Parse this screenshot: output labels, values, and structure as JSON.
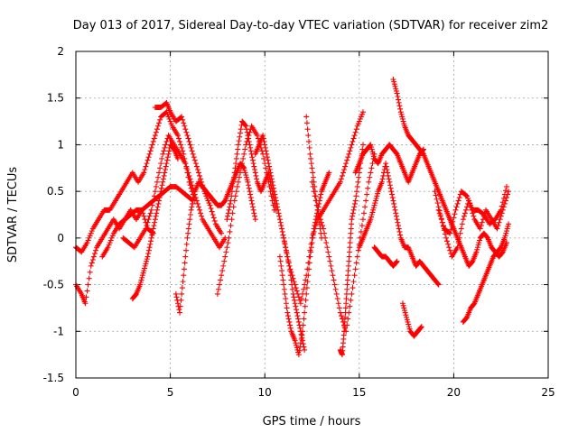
{
  "chart_data": {
    "type": "scatter",
    "title": "Day 013 of 2017, Sidereal Day-to-day VTEC variation (SDTVAR) for receiver zim2",
    "xlabel": "GPS time / hours",
    "ylabel": "SDTVAR / TECUs",
    "xlim": [
      0,
      25
    ],
    "ylim": [
      -1.5,
      2
    ],
    "xticks": [
      0,
      5,
      10,
      15,
      20,
      25
    ],
    "yticks": [
      -1.5,
      -1,
      -0.5,
      0,
      0.5,
      1,
      1.5,
      2
    ],
    "xtick_labels": [
      "0",
      "5",
      "10",
      "15",
      "20",
      "25"
    ],
    "ytick_labels": [
      "-1.5",
      "-1",
      "-0.5",
      "0",
      "0.5",
      "1",
      "1.5",
      "2"
    ],
    "grid": true,
    "marker": "+",
    "color": "#ff0000",
    "series": [
      {
        "name": "s1",
        "x": [
          0.0,
          0.3,
          0.6,
          0.9,
          1.2,
          1.5,
          1.8,
          2.1,
          2.4,
          2.7,
          3.0,
          3.3,
          3.6,
          3.9,
          4.2,
          4.5,
          4.8,
          5.1,
          5.4,
          5.7,
          6.0,
          6.3
        ],
        "y": [
          -0.1,
          -0.15,
          -0.05,
          0.1,
          0.2,
          0.3,
          0.3,
          0.4,
          0.5,
          0.6,
          0.7,
          0.6,
          0.7,
          0.9,
          1.1,
          1.3,
          1.35,
          1.2,
          1.1,
          0.9,
          0.6,
          0.4
        ]
      },
      {
        "name": "s2",
        "x": [
          4.2,
          4.5,
          4.8,
          5.0,
          5.3,
          5.6,
          5.9,
          6.2,
          6.5,
          6.8,
          7.1,
          7.4,
          7.7
        ],
        "y": [
          1.4,
          1.4,
          1.45,
          1.35,
          1.25,
          1.3,
          1.1,
          0.9,
          0.7,
          0.5,
          0.35,
          0.15,
          0.05
        ]
      },
      {
        "name": "s3",
        "x": [
          0.0,
          0.3,
          0.5,
          0.8,
          1.1,
          1.4,
          1.7,
          2.0,
          2.3,
          2.6,
          2.9,
          3.2,
          3.5,
          3.8,
          4.1
        ],
        "y": [
          -0.5,
          -0.6,
          -0.7,
          -0.3,
          -0.1,
          0.0,
          0.1,
          0.2,
          0.1,
          0.2,
          0.3,
          0.2,
          0.3,
          0.1,
          0.05
        ]
      },
      {
        "name": "s4",
        "x": [
          1.4,
          1.7,
          2.0,
          2.3,
          2.6,
          2.9,
          3.2,
          3.5,
          3.8,
          4.1,
          4.4,
          4.7,
          5.0,
          5.3,
          5.6,
          5.9,
          6.2
        ],
        "y": [
          -0.2,
          -0.1,
          0.05,
          0.15,
          0.2,
          0.25,
          0.3,
          0.3,
          0.35,
          0.4,
          0.45,
          0.5,
          0.55,
          0.55,
          0.5,
          0.45,
          0.4
        ]
      },
      {
        "name": "s5",
        "x": [
          2.5,
          2.8,
          3.1,
          3.4,
          3.7,
          4.0,
          4.3,
          4.6,
          4.9,
          5.2,
          5.5,
          5.8,
          6.1,
          6.4,
          6.7,
          7.0,
          7.3,
          7.6,
          7.9
        ],
        "y": [
          0.0,
          -0.05,
          -0.1,
          0.0,
          0.1,
          0.3,
          0.6,
          0.9,
          1.1,
          1.0,
          0.9,
          0.8,
          0.6,
          0.4,
          0.2,
          0.1,
          0.0,
          -0.1,
          0.0
        ]
      },
      {
        "name": "s6",
        "x": [
          3.0,
          3.2,
          3.4,
          3.6,
          3.8,
          4.0,
          4.2,
          4.4,
          4.6,
          4.8,
          5.0,
          5.2,
          5.4
        ],
        "y": [
          -0.65,
          -0.6,
          -0.5,
          -0.35,
          -0.2,
          0.0,
          0.2,
          0.4,
          0.6,
          0.8,
          1.0,
          0.95,
          0.85
        ]
      },
      {
        "name": "s7",
        "x": [
          5.3,
          5.5,
          5.7,
          5.9,
          6.1,
          6.3,
          6.5,
          6.7,
          6.9,
          7.1,
          7.3,
          7.5,
          7.7,
          7.9,
          8.1,
          8.3,
          8.5,
          8.7,
          8.9,
          9.1,
          9.3,
          9.5
        ],
        "y": [
          -0.6,
          -0.8,
          -0.4,
          0.0,
          0.3,
          0.5,
          0.6,
          0.55,
          0.5,
          0.45,
          0.4,
          0.35,
          0.35,
          0.4,
          0.5,
          0.6,
          0.7,
          0.8,
          0.75,
          0.6,
          0.4,
          0.2
        ]
      },
      {
        "name": "s8",
        "x": [
          7.5,
          7.8,
          8.1,
          8.4,
          8.7,
          9.0,
          9.3,
          9.6,
          9.9,
          10.2,
          10.5
        ],
        "y": [
          -0.6,
          -0.3,
          0.0,
          0.4,
          0.7,
          1.0,
          1.2,
          1.1,
          0.9,
          0.6,
          0.3
        ]
      },
      {
        "name": "s9",
        "x": [
          8.0,
          8.2,
          8.4,
          8.6,
          8.8,
          9.0,
          9.2,
          9.4,
          9.6,
          9.8,
          10.0,
          10.2,
          10.4,
          10.6
        ],
        "y": [
          0.2,
          0.4,
          0.7,
          1.0,
          1.25,
          1.2,
          1.0,
          0.8,
          0.6,
          0.5,
          0.6,
          0.7,
          0.5,
          0.3
        ]
      },
      {
        "name": "s10",
        "x": [
          9.5,
          9.7,
          9.9,
          10.1,
          10.3,
          10.5,
          10.7,
          10.9,
          11.1,
          11.3,
          11.5,
          11.7,
          11.9,
          12.1
        ],
        "y": [
          0.9,
          1.0,
          1.1,
          0.9,
          0.7,
          0.5,
          0.3,
          0.1,
          -0.1,
          -0.3,
          -0.6,
          -0.8,
          -1.0,
          -1.2
        ]
      },
      {
        "name": "s11",
        "x": [
          10.8,
          11.0,
          11.2,
          11.4,
          11.6,
          11.8,
          12.0,
          12.2,
          12.4,
          12.6,
          12.8,
          13.0,
          13.2,
          13.4
        ],
        "y": [
          -0.2,
          -0.5,
          -0.8,
          -1.0,
          -1.1,
          -1.25,
          -1.0,
          -0.6,
          -0.2,
          0.1,
          0.3,
          0.5,
          0.6,
          0.7
        ]
      },
      {
        "name": "s12",
        "x": [
          11.0,
          11.3,
          11.6,
          11.9,
          12.2,
          12.5,
          12.8,
          13.1,
          13.4,
          13.7,
          14.0,
          14.3,
          14.6,
          14.9,
          15.2
        ],
        "y": [
          0.0,
          -0.3,
          -0.5,
          -0.7,
          -0.4,
          0.0,
          0.2,
          0.3,
          0.4,
          0.5,
          0.6,
          0.8,
          1.0,
          1.2,
          1.35
        ]
      },
      {
        "name": "s13",
        "x": [
          12.5,
          12.8,
          13.1,
          13.4,
          13.7,
          14.0,
          14.3,
          14.6,
          14.9,
          15.2,
          15.5,
          15.8
        ],
        "y": [
          0.6,
          0.3,
          0.1,
          -0.2,
          -0.5,
          -0.8,
          -1.0,
          -0.6,
          -0.2,
          0.2,
          0.6,
          0.9
        ]
      },
      {
        "name": "s14",
        "x": [
          12.2,
          12.4,
          12.6,
          12.8,
          13.0
        ],
        "y": [
          1.3,
          0.9,
          0.6,
          0.3,
          0.0
        ]
      },
      {
        "name": "s15",
        "x": [
          14.0,
          14.1,
          14.2,
          14.3,
          14.4,
          14.5,
          14.6,
          14.8,
          15.0,
          15.2
        ],
        "y": [
          -1.2,
          -1.25,
          -1.0,
          -0.7,
          -0.4,
          -0.1,
          0.2,
          0.4,
          0.7,
          1.0
        ]
      },
      {
        "name": "s16",
        "x": [
          14.8,
          15.0,
          15.2,
          15.4,
          15.6,
          15.8,
          16.0,
          16.2,
          16.4,
          16.6,
          16.8,
          17.0,
          17.2,
          17.4,
          17.6,
          17.8,
          18.0,
          18.2,
          18.4
        ],
        "y": [
          0.7,
          0.8,
          0.9,
          0.95,
          1.0,
          0.85,
          0.8,
          0.9,
          0.95,
          1.0,
          0.95,
          0.9,
          0.8,
          0.7,
          0.6,
          0.7,
          0.8,
          0.9,
          0.95
        ]
      },
      {
        "name": "s17",
        "x": [
          16.8,
          17.0,
          17.2,
          17.4,
          17.6,
          17.8,
          18.0,
          18.2,
          18.4,
          18.6,
          18.8,
          19.0,
          19.2,
          19.4,
          19.6,
          19.8,
          20.0
        ],
        "y": [
          1.7,
          1.55,
          1.35,
          1.2,
          1.1,
          1.05,
          1.0,
          0.95,
          0.9,
          0.8,
          0.7,
          0.6,
          0.5,
          0.4,
          0.3,
          0.2,
          0.1
        ]
      },
      {
        "name": "s18",
        "x": [
          15.0,
          15.2,
          15.4,
          15.6,
          15.8,
          16.0,
          16.2,
          16.4,
          16.6,
          16.8,
          17.0,
          17.2,
          17.4,
          17.6,
          17.8,
          18.0,
          18.2,
          18.4,
          18.6,
          18.8,
          19.0,
          19.2
        ],
        "y": [
          -0.1,
          0.0,
          0.1,
          0.2,
          0.35,
          0.5,
          0.6,
          0.8,
          0.6,
          0.4,
          0.2,
          0.0,
          -0.1,
          -0.1,
          -0.2,
          -0.3,
          -0.25,
          -0.3,
          -0.35,
          -0.4,
          -0.45,
          -0.5
        ]
      },
      {
        "name": "s19",
        "x": [
          15.8,
          16.0,
          16.2,
          16.4,
          16.6,
          16.8,
          17.0
        ],
        "y": [
          -0.1,
          -0.15,
          -0.2,
          -0.2,
          -0.25,
          -0.3,
          -0.25
        ]
      },
      {
        "name": "s20",
        "x": [
          17.3,
          17.5,
          17.7,
          17.9,
          18.1,
          18.3
        ],
        "y": [
          -0.7,
          -0.85,
          -1.0,
          -1.05,
          -1.0,
          -0.95
        ]
      },
      {
        "name": "s21",
        "x": [
          19.0,
          19.3,
          19.6,
          19.9,
          20.2,
          20.5,
          20.8,
          21.1,
          21.4,
          21.7,
          22.0,
          22.3,
          22.6,
          22.9
        ],
        "y": [
          0.5,
          0.25,
          0.0,
          -0.2,
          -0.1,
          0.2,
          0.4,
          0.2,
          0.1,
          0.3,
          0.2,
          0.1,
          0.3,
          0.5
        ]
      },
      {
        "name": "s22",
        "x": [
          19.2,
          19.5,
          19.8,
          20.1,
          20.4,
          20.7,
          21.0,
          21.3,
          21.6,
          21.9,
          22.2,
          22.5,
          22.8
        ],
        "y": [
          0.3,
          0.1,
          0.05,
          0.3,
          0.5,
          0.45,
          0.3,
          0.3,
          0.25,
          0.15,
          0.2,
          0.3,
          0.55
        ]
      },
      {
        "name": "s23",
        "x": [
          20.5,
          20.7,
          20.9,
          21.1,
          21.3,
          21.5,
          21.7,
          21.9,
          22.1,
          22.3,
          22.5,
          22.7,
          22.9
        ],
        "y": [
          -0.9,
          -0.85,
          -0.75,
          -0.7,
          -0.6,
          -0.5,
          -0.4,
          -0.3,
          -0.2,
          -0.15,
          -0.1,
          0.0,
          0.15
        ]
      },
      {
        "name": "s24",
        "x": [
          19.8,
          20.0,
          20.2,
          20.4,
          20.6,
          20.8,
          21.0,
          21.2,
          21.4,
          21.6,
          21.8,
          22.0,
          22.2,
          22.4,
          22.6,
          22.8
        ],
        "y": [
          0.2,
          0.1,
          0.0,
          -0.1,
          -0.2,
          -0.3,
          -0.25,
          -0.15,
          0.0,
          0.05,
          0.0,
          -0.1,
          -0.15,
          -0.2,
          -0.15,
          -0.05
        ]
      }
    ]
  }
}
